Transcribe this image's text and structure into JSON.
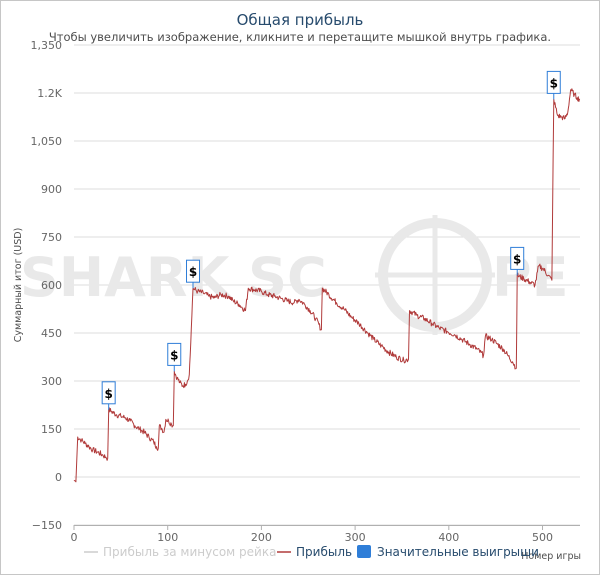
{
  "chart_data": {
    "type": "line",
    "title": "Общая прибыль",
    "subtitle": "Чтобы увеличить изображение, кликните и перетащите мышкой внутрь графика.",
    "ylabel": "Суммарный итог (USD)",
    "xlabel": "Номер игры",
    "xlim": [
      0,
      540
    ],
    "ylim": [
      -150,
      1350
    ],
    "x_ticks": [
      "0",
      "100",
      "200",
      "300",
      "400",
      "500"
    ],
    "x_tick_values": [
      0,
      100,
      200,
      300,
      400,
      500
    ],
    "y_ticks": [
      "−150",
      "0",
      "150",
      "300",
      "450",
      "600",
      "750",
      "900",
      "1,050",
      "1.2K",
      "1,350"
    ],
    "y_tick_values": [
      -150,
      0,
      150,
      300,
      450,
      600,
      750,
      900,
      1050,
      1200,
      1350
    ],
    "grid": "horizontal",
    "legend_position": "bottom",
    "series": [
      {
        "name": "Прибыль за минусом рейка",
        "color": "#cccccc",
        "visible": false,
        "points": []
      },
      {
        "name": "Прибыль",
        "color": "#b03a3a",
        "points": [
          [
            0,
            -10
          ],
          [
            2,
            -15
          ],
          [
            4,
            125
          ],
          [
            8,
            115
          ],
          [
            12,
            105
          ],
          [
            16,
            95
          ],
          [
            20,
            85
          ],
          [
            25,
            78
          ],
          [
            30,
            70
          ],
          [
            34,
            62
          ],
          [
            36,
            58
          ],
          [
            37,
            210
          ],
          [
            40,
            205
          ],
          [
            45,
            195
          ],
          [
            50,
            190
          ],
          [
            55,
            185
          ],
          [
            60,
            175
          ],
          [
            65,
            160
          ],
          [
            70,
            150
          ],
          [
            75,
            140
          ],
          [
            80,
            125
          ],
          [
            85,
            110
          ],
          [
            88,
            95
          ],
          [
            90,
            90
          ],
          [
            91,
            160
          ],
          [
            94,
            150
          ],
          [
            96,
            140
          ],
          [
            98,
            180
          ],
          [
            101,
            175
          ],
          [
            104,
            165
          ],
          [
            106,
            160
          ],
          [
            107,
            330
          ],
          [
            110,
            310
          ],
          [
            113,
            295
          ],
          [
            116,
            285
          ],
          [
            119,
            290
          ],
          [
            121,
            300
          ],
          [
            123,
            320
          ],
          [
            124,
            380
          ],
          [
            127,
            590
          ],
          [
            132,
            580
          ],
          [
            138,
            575
          ],
          [
            144,
            565
          ],
          [
            150,
            560
          ],
          [
            157,
            570
          ],
          [
            165,
            565
          ],
          [
            170,
            550
          ],
          [
            176,
            540
          ],
          [
            183,
            520
          ],
          [
            186,
            590
          ],
          [
            193,
            585
          ],
          [
            200,
            580
          ],
          [
            207,
            570
          ],
          [
            214,
            565
          ],
          [
            221,
            558
          ],
          [
            228,
            550
          ],
          [
            235,
            545
          ],
          [
            240,
            555
          ],
          [
            246,
            540
          ],
          [
            252,
            520
          ],
          [
            258,
            495
          ],
          [
            264,
            460
          ],
          [
            265,
            590
          ],
          [
            272,
            570
          ],
          [
            280,
            545
          ],
          [
            288,
            525
          ],
          [
            296,
            500
          ],
          [
            304,
            480
          ],
          [
            312,
            455
          ],
          [
            320,
            430
          ],
          [
            328,
            410
          ],
          [
            336,
            390
          ],
          [
            344,
            375
          ],
          [
            352,
            365
          ],
          [
            357,
            368
          ],
          [
            358,
            520
          ],
          [
            366,
            505
          ],
          [
            374,
            495
          ],
          [
            382,
            480
          ],
          [
            390,
            465
          ],
          [
            398,
            455
          ],
          [
            406,
            445
          ],
          [
            414,
            430
          ],
          [
            422,
            415
          ],
          [
            430,
            400
          ],
          [
            437,
            380
          ],
          [
            439,
            440
          ],
          [
            446,
            430
          ],
          [
            452,
            415
          ],
          [
            458,
            400
          ],
          [
            463,
            380
          ],
          [
            468,
            360
          ],
          [
            472,
            340
          ],
          [
            473,
            630
          ],
          [
            480,
            620
          ],
          [
            486,
            610
          ],
          [
            492,
            600
          ],
          [
            496,
            660
          ],
          [
            501,
            650
          ],
          [
            506,
            630
          ],
          [
            510,
            615
          ],
          [
            512,
            1180
          ],
          [
            516,
            1130
          ],
          [
            520,
            1125
          ],
          [
            524,
            1120
          ],
          [
            527,
            1140
          ],
          [
            530,
            1210
          ],
          [
            534,
            1195
          ],
          [
            537,
            1185
          ],
          [
            540,
            1180
          ]
        ]
      },
      {
        "name": "Значительные выигрыши",
        "color": "#2f7ed8",
        "marker_label": "$",
        "points": [
          [
            37,
            210
          ],
          [
            107,
            330
          ],
          [
            127,
            590
          ],
          [
            473,
            630
          ],
          [
            512,
            1180
          ]
        ]
      }
    ]
  },
  "watermark": {
    "text": "SHARK SC",
    "text_after": "PE"
  }
}
